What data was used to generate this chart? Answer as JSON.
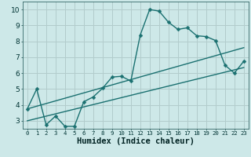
{
  "xlabel": "Humidex (Indice chaleur)",
  "bg_color": "#cde8e8",
  "grid_color": "#b2cccc",
  "line_color": "#1a7070",
  "xlim": [
    -0.5,
    23.5
  ],
  "ylim": [
    2.5,
    10.5
  ],
  "xticks": [
    0,
    1,
    2,
    3,
    4,
    5,
    6,
    7,
    8,
    9,
    10,
    11,
    12,
    13,
    14,
    15,
    16,
    17,
    18,
    19,
    20,
    21,
    22,
    23
  ],
  "yticks": [
    3,
    4,
    5,
    6,
    7,
    8,
    9,
    10
  ],
  "series1_x": [
    0,
    1,
    2,
    3,
    4,
    5,
    6,
    7,
    8,
    9,
    10,
    11,
    12,
    13,
    14,
    15,
    16,
    17,
    18,
    19,
    20,
    21,
    22,
    23
  ],
  "series1_y": [
    3.75,
    5.0,
    2.75,
    3.3,
    2.65,
    2.65,
    4.2,
    4.5,
    5.05,
    5.75,
    5.8,
    5.5,
    8.4,
    10.0,
    9.9,
    9.2,
    8.75,
    8.85,
    8.35,
    8.3,
    8.05,
    6.5,
    6.0,
    6.75
  ],
  "series2_x": [
    0,
    23
  ],
  "series2_y": [
    3.75,
    7.6
  ],
  "series3_x": [
    0,
    23
  ],
  "series3_y": [
    3.0,
    6.35
  ],
  "marker_size": 2.5,
  "line_width": 1.0,
  "xlabel_fontsize": 7.5,
  "tick_fontsize_x": 5.2,
  "tick_fontsize_y": 6.5
}
